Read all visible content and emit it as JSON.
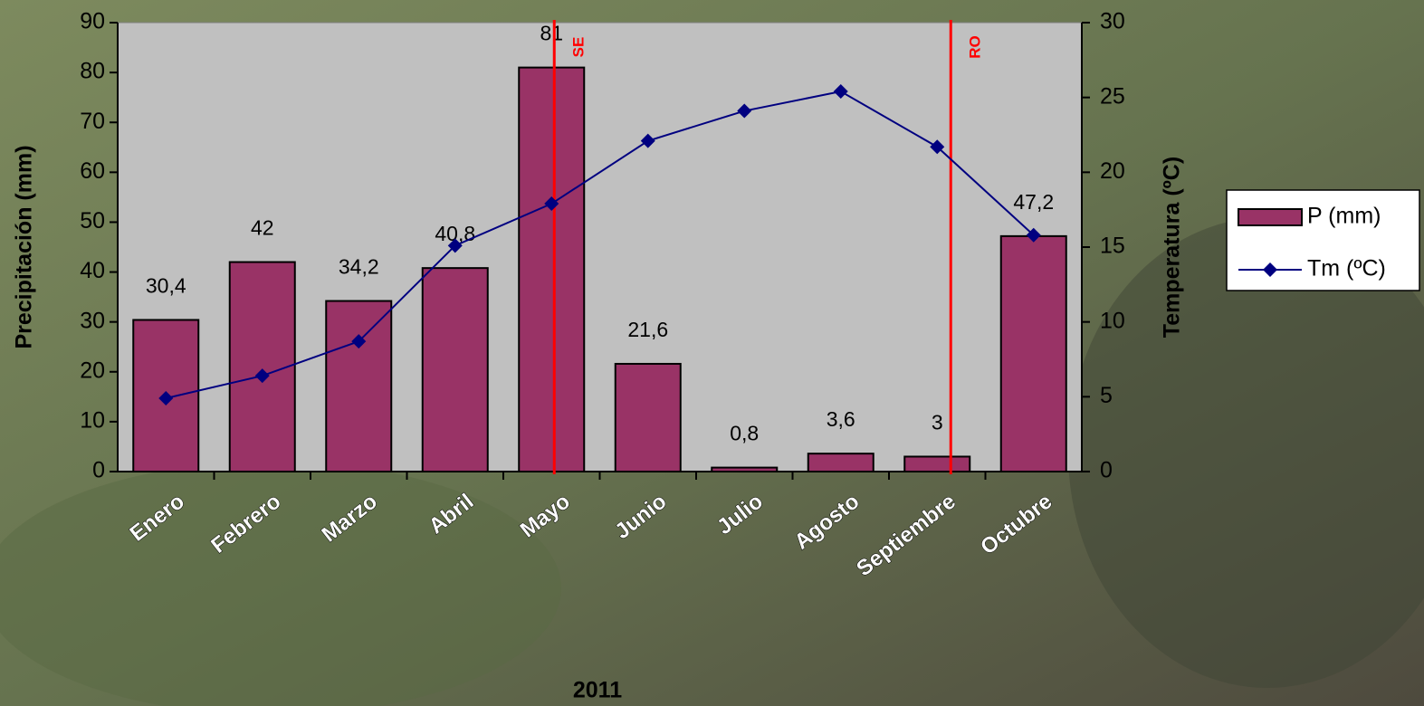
{
  "chart_data": {
    "type": "bar-line",
    "x_label": "2011",
    "y_label": "Precipitación (mm)",
    "y2_label": "Temperatura (ºC)",
    "categories": [
      "Enero",
      "Febrero",
      "Marzo",
      "Abril",
      "Mayo",
      "Junio",
      "Julio",
      "Agosto",
      "Septiembre",
      "Octubre"
    ],
    "series": [
      {
        "name": "P (mm)",
        "type": "bar",
        "color": "#993366",
        "values": [
          30.4,
          42,
          34.2,
          40.8,
          81,
          21.6,
          0.8,
          3.6,
          3,
          47.2
        ],
        "value_labels": [
          "30,4",
          "42",
          "34,2",
          "40,8",
          "81",
          "21,6",
          "0,8",
          "3,6",
          "3",
          "47,2"
        ]
      },
      {
        "name": "Tm (ºC)",
        "type": "line",
        "axis": "y2",
        "color": "#000080",
        "values": [
          4.9,
          6.4,
          8.7,
          15.1,
          17.9,
          22.1,
          24.1,
          25.4,
          21.7,
          15.8
        ]
      }
    ],
    "ylim": [
      0,
      90
    ],
    "yticks": [
      0,
      10,
      20,
      30,
      40,
      50,
      60,
      70,
      80,
      90
    ],
    "y2lim": [
      0,
      30
    ],
    "y2ticks": [
      0,
      5,
      10,
      15,
      20,
      25,
      30
    ],
    "annotations": [
      {
        "text": "SE"
      },
      {
        "text": "RO"
      }
    ],
    "legend": "right"
  }
}
